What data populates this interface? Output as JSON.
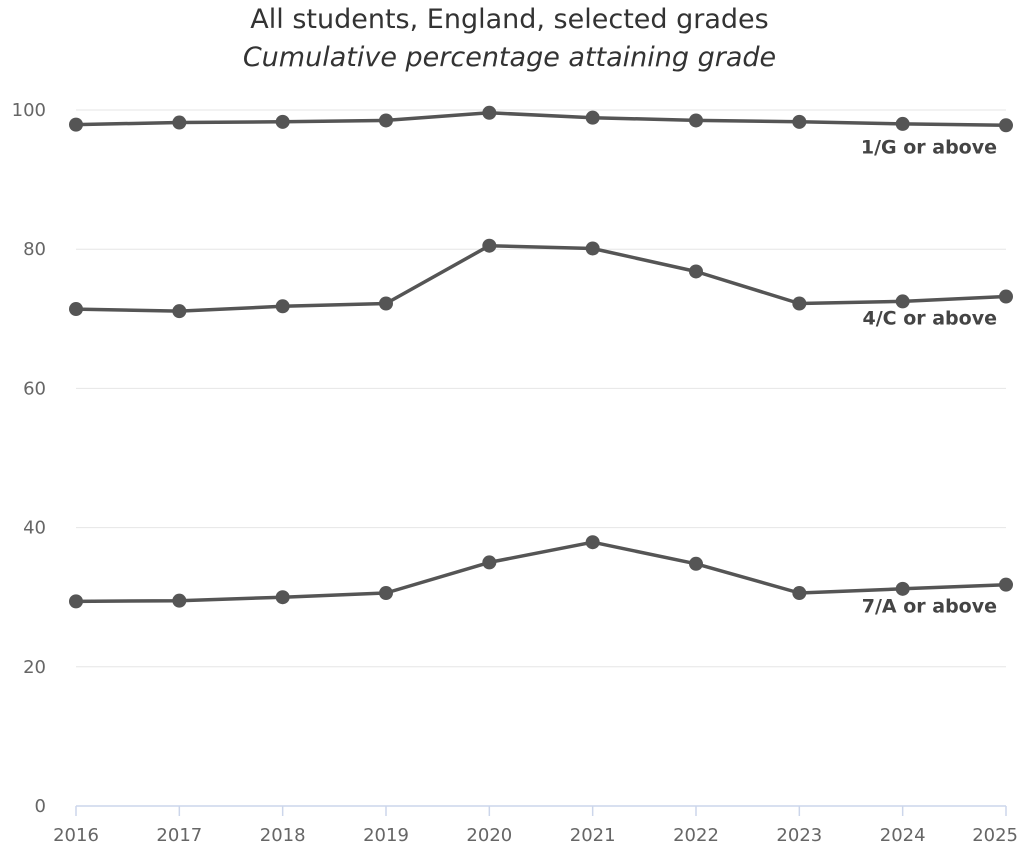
{
  "chart_data": {
    "type": "line",
    "title": "All students, England, selected grades",
    "subtitle": "Cumulative percentage attaining grade",
    "x": [
      "2016",
      "2017",
      "2018",
      "2019",
      "2020",
      "2021",
      "2022",
      "2023",
      "2024",
      "2025"
    ],
    "ylim": [
      0,
      100
    ],
    "yticks": [
      "0",
      "20",
      "40",
      "60",
      "80",
      "100"
    ],
    "grid": true,
    "line_color": "#555555",
    "series": [
      {
        "name": "1/G or above",
        "values": [
          97.9,
          98.2,
          98.3,
          98.5,
          99.6,
          98.9,
          98.5,
          98.3,
          98.0,
          97.8
        ]
      },
      {
        "name": "4/C or above",
        "values": [
          71.4,
          71.1,
          71.8,
          72.2,
          80.5,
          80.1,
          76.8,
          72.2,
          72.5,
          73.2
        ]
      },
      {
        "name": "7/A or above",
        "values": [
          29.4,
          29.5,
          30.0,
          30.6,
          35.0,
          37.9,
          34.8,
          30.6,
          31.2,
          31.8
        ]
      }
    ]
  }
}
